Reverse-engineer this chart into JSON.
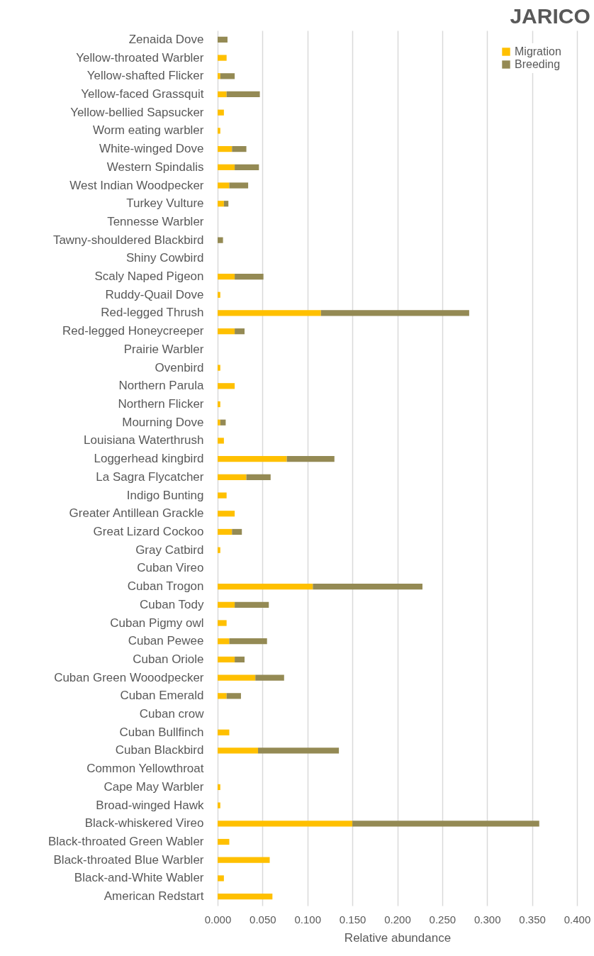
{
  "chart_data": {
    "type": "bar",
    "orientation": "horizontal",
    "stacked": true,
    "title": "JARICO",
    "xlabel": "Relative abundance",
    "categories": [
      "Zenaida Dove",
      "Yellow-throated Warbler",
      "Yellow-shafted Flicker",
      "Yellow-faced Grassquit",
      "Yellow-bellied Sapsucker",
      "Worm eating warbler",
      "White-winged Dove",
      "Western Spindalis",
      "West Indian Woodpecker",
      "Turkey Vulture",
      "Tennesse Warbler",
      "Tawny-shouldered Blackbird",
      "Shiny Cowbird",
      "Scaly Naped Pigeon",
      "Ruddy-Quail Dove",
      "Red-legged Thrush",
      "Red-legged Honeycreeper",
      "Prairie Warbler",
      "Ovenbird",
      "Northern Parula",
      "Northern Flicker",
      "Mourning Dove",
      "Louisiana Waterthrush",
      "Loggerhead kingbird",
      "La Sagra Flycatcher",
      "Indigo Bunting",
      "Greater Antillean Grackle",
      "Great Lizard Cockoo",
      "Gray Catbird",
      "Cuban Vireo",
      "Cuban Trogon",
      "Cuban Tody",
      "Cuban Pigmy owl",
      "Cuban Pewee",
      "Cuban Oriole",
      "Cuban Green Wooodpecker",
      "Cuban Emerald",
      "Cuban crow",
      "Cuban Bullfinch",
      "Cuban Blackbird",
      "Common Yellowthroat",
      "Cape May Warbler",
      "Broad-winged Hawk",
      "Black-whiskered Vireo",
      "Black-throated Green Wabler",
      "Black-throated Blue Warbler",
      "Black-and-White Wabler",
      "American Redstart"
    ],
    "series": [
      {
        "name": "Migration",
        "color": "#ffc000",
        "values": [
          0,
          0.01,
          0.003,
          0.01,
          0.007,
          0.003,
          0.016,
          0.019,
          0.013,
          0.007,
          0,
          0,
          0,
          0.019,
          0.003,
          0.115,
          0.019,
          0,
          0.003,
          0.019,
          0.003,
          0.003,
          0.007,
          0.077,
          0.032,
          0.01,
          0.019,
          0.016,
          0.003,
          0,
          0.106,
          0.019,
          0.01,
          0.013,
          0.019,
          0.042,
          0.01,
          0,
          0.013,
          0.045,
          0,
          0.003,
          0.003,
          0.15,
          0.013,
          0.058,
          0.007,
          0.061
        ]
      },
      {
        "name": "Breeding",
        "color": "#948a54",
        "values": [
          0.011,
          0,
          0.016,
          0.037,
          0,
          0,
          0.016,
          0.027,
          0.021,
          0.005,
          0,
          0.006,
          0,
          0.032,
          0,
          0.165,
          0.011,
          0,
          0,
          0,
          0,
          0.006,
          0,
          0.053,
          0.027,
          0,
          0,
          0.011,
          0,
          0,
          0.122,
          0.038,
          0,
          0.042,
          0.011,
          0.032,
          0.016,
          0,
          0,
          0.09,
          0,
          0,
          0,
          0.208,
          0,
          0,
          0,
          0
        ]
      }
    ],
    "xlim": [
      0,
      0.4
    ],
    "xticks": [
      {
        "value": 0,
        "label": "0.000"
      },
      {
        "value": 0.05,
        "label": "0.050"
      },
      {
        "value": 0.1,
        "label": "0.100"
      },
      {
        "value": 0.15,
        "label": "0.150"
      },
      {
        "value": 0.2,
        "label": "0.200"
      },
      {
        "value": 0.25,
        "label": "0.250"
      },
      {
        "value": 0.3,
        "label": "0.300"
      },
      {
        "value": 0.35,
        "label": "0.350"
      },
      {
        "value": 0.4,
        "label": "0.400"
      }
    ],
    "grid": "x",
    "legend": "top right"
  }
}
